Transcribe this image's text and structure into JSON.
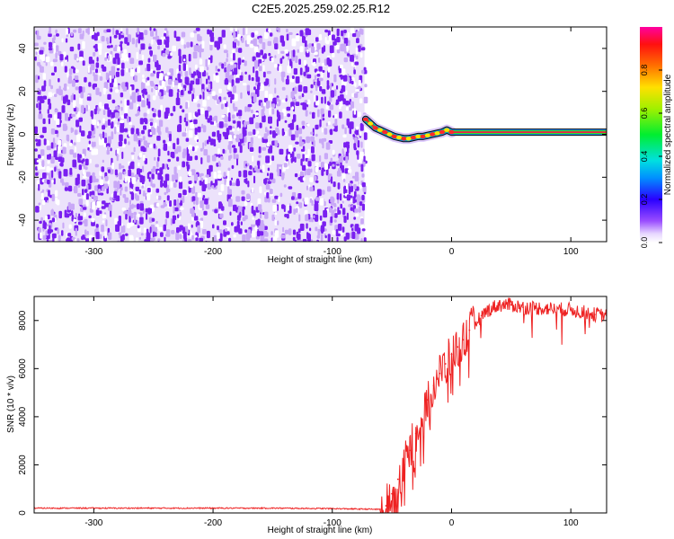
{
  "title": "C2E5.2025.259.02.25.R12",
  "colors": {
    "speckle": "#7a1ff0",
    "speckle_light": "#c9a8f7",
    "snr_line": "#ee2222",
    "trace_core": "#ee1e4a",
    "trace_mid": "#33dd22",
    "trace_edge": "#1188ee",
    "trace_outline": "#111111"
  },
  "chart_data": [
    {
      "type": "heatmap",
      "name": "spectrogram",
      "xlabel": "Height of straight line (km)",
      "ylabel": "Frequency (Hz)",
      "xlim": [
        -350,
        130
      ],
      "ylim": [
        -50,
        50
      ],
      "x_ticks": [
        -300,
        -200,
        -100,
        0,
        100
      ],
      "y_ticks": [
        -40,
        -20,
        0,
        20,
        40
      ],
      "noise_region_x": [
        -350,
        -73
      ],
      "trace": {
        "x": [
          -72,
          -68,
          -64,
          -60,
          -56,
          -52,
          -48,
          -44,
          -40,
          -36,
          -32,
          -28,
          -24,
          -20,
          -16,
          -12,
          -8,
          -4,
          0,
          20,
          40,
          60,
          80,
          100,
          130
        ],
        "y": [
          7,
          5,
          3,
          2,
          1,
          0,
          -1,
          -1.5,
          -2,
          -2,
          -1.5,
          -1,
          -1,
          -0.5,
          0,
          0.5,
          1,
          2,
          1,
          1,
          1,
          1,
          1,
          1,
          1
        ]
      },
      "colorbar": {
        "label": "Normalized spectral amplitude",
        "range": [
          0,
          1
        ],
        "ticks": [
          "0.0",
          "0.2",
          "0.4",
          "0.6",
          "0.8"
        ],
        "tick_values": [
          0,
          0.2,
          0.4,
          0.6,
          0.8
        ]
      }
    },
    {
      "type": "line",
      "name": "snr",
      "xlabel": "Height of straight line (km)",
      "ylabel": "SNR (10 * v/v)",
      "xlim": [
        -350,
        130
      ],
      "ylim": [
        0,
        9000
      ],
      "x_ticks": [
        -300,
        -200,
        -100,
        0,
        100
      ],
      "y_ticks": [
        0,
        2000,
        4000,
        6000,
        8000
      ],
      "series": [
        {
          "name": "SNR",
          "x": [
            -350,
            -300,
            -250,
            -200,
            -150,
            -100,
            -60,
            -55,
            -50,
            -45,
            -40,
            -35,
            -30,
            -25,
            -20,
            -15,
            -10,
            -5,
            0,
            5,
            10,
            15,
            20,
            25,
            30,
            35,
            40,
            50,
            60,
            80,
            100,
            110,
            120,
            130
          ],
          "y": [
            200,
            200,
            200,
            200,
            200,
            180,
            150,
            300,
            800,
            1400,
            2000,
            2600,
            3300,
            3900,
            4700,
            5300,
            5800,
            6200,
            6600,
            6900,
            7200,
            7600,
            7900,
            8200,
            8400,
            8550,
            8650,
            8650,
            8550,
            8500,
            8450,
            8350,
            8250,
            8200
          ]
        }
      ]
    }
  ]
}
